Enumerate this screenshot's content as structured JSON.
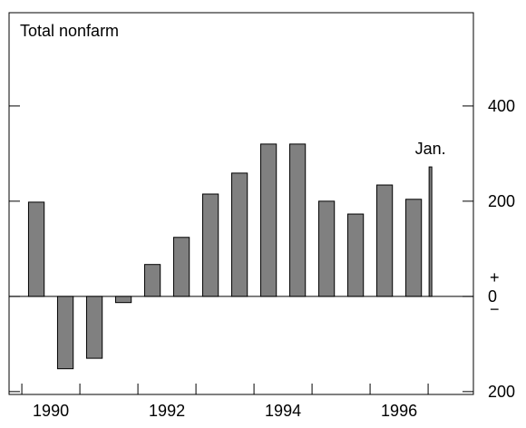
{
  "chart_data": {
    "type": "bar",
    "title": "Total nonfarm",
    "x": [
      1990.25,
      1990.75,
      1991.25,
      1991.75,
      1992.25,
      1992.75,
      1993.25,
      1993.75,
      1994.25,
      1994.75,
      1995.25,
      1995.75,
      1996.25,
      1996.75
    ],
    "values": [
      198,
      -152,
      -130,
      -13,
      67,
      124,
      215,
      259,
      320,
      320,
      200,
      173,
      234,
      204
    ],
    "color": "#808080",
    "annotation": {
      "text": "Jan.",
      "x": 1997.04,
      "value": 272
    },
    "xlim": [
      1989.78,
      1997.78
    ],
    "xticks": [
      {
        "value": 1990.5,
        "label": "1990"
      },
      {
        "value": 1992.5,
        "label": "1992"
      },
      {
        "value": 1994.5,
        "label": "1994"
      },
      {
        "value": 1996.5,
        "label": "1996"
      }
    ],
    "ylim": [
      -206,
      596
    ],
    "yticks": [
      {
        "value": -200,
        "label": "200"
      },
      0,
      200,
      400
    ],
    "zero_signs": [
      "+",
      "−"
    ]
  }
}
